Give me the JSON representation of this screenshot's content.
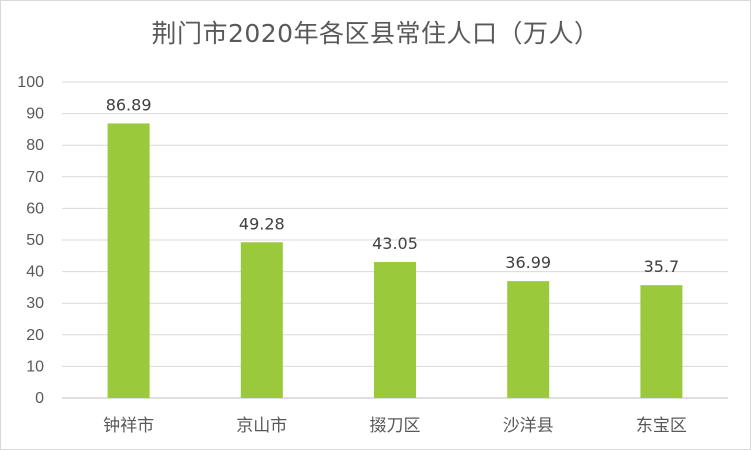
{
  "chart_data": {
    "type": "bar",
    "title": "荆门市2020年各区县常住人口（万人）",
    "categories": [
      "钟祥市",
      "京山市",
      "掇刀区",
      "沙洋县",
      "东宝区"
    ],
    "values": [
      86.89,
      49.28,
      43.05,
      36.99,
      35.7
    ],
    "data_labels": [
      "86.89",
      "49.28",
      "43.05",
      "36.99",
      "35.7"
    ],
    "ylim": [
      0,
      100
    ],
    "yticks": [
      0,
      10,
      20,
      30,
      40,
      50,
      60,
      70,
      80,
      90,
      100
    ],
    "grid": true,
    "legend": "none",
    "bar_color": "#9ACA3C",
    "grid_color": "#d9d9d9",
    "text_color": "#595959"
  }
}
